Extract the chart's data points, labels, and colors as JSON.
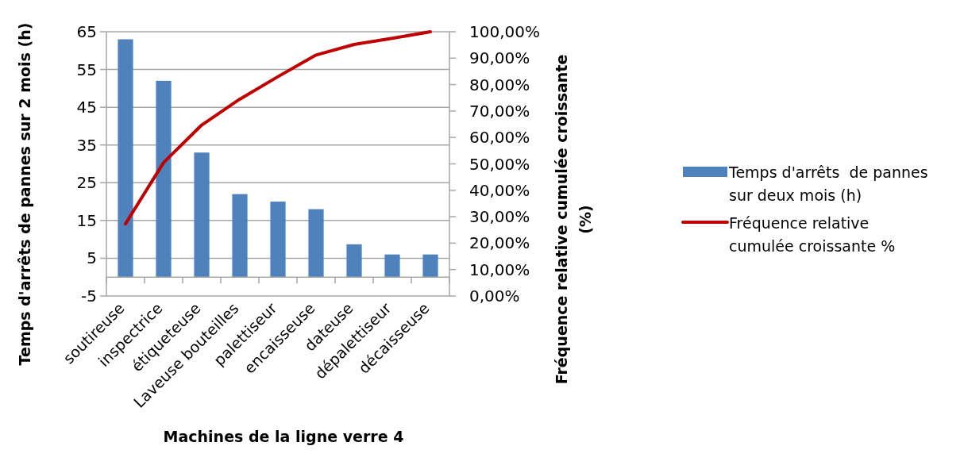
{
  "chart_data": {
    "type": "bar",
    "xlabel": "Machines de la ligne verre 4",
    "ylabel": "Temps d'arrêts de pannes sur 2 mois (h)",
    "y2label": "Fréquence relative cumulée croissante (%)",
    "categories": [
      "soutireuse",
      "inspectrice",
      "étiqueteuse",
      "Laveuse bouteilles",
      "palettiseur",
      "encaisseuse",
      "dateuse",
      "dépalettiseur",
      "décaisseuse"
    ],
    "series": [
      {
        "name": "Temps d'arrêts  de pannes sur deux mois (h)",
        "type": "bar",
        "color": "#4f81bd",
        "values": [
          63,
          52,
          33,
          22,
          20,
          18,
          8.7,
          6,
          6
        ]
      },
      {
        "name": "Fréquence relative cumulée croissante %",
        "type": "line",
        "axis": "y2",
        "color": "#c00000",
        "values": [
          27.3,
          50.5,
          64.7,
          74.5,
          83,
          91.2,
          95.2,
          97.5,
          100
        ]
      }
    ],
    "ylim": [
      -5,
      65
    ],
    "yticks": [
      -5,
      5,
      15,
      25,
      35,
      45,
      55,
      65
    ],
    "y2lim": [
      0,
      100
    ],
    "y2ticks": [
      {
        "value": 0,
        "label": "0,00%"
      },
      {
        "value": 10,
        "label": "10,00%"
      },
      {
        "value": 20,
        "label": "20,00%"
      },
      {
        "value": 30,
        "label": "30,00%"
      },
      {
        "value": 40,
        "label": "40,00%"
      },
      {
        "value": 50,
        "label": "50,00%"
      },
      {
        "value": 60,
        "label": "60,00%"
      },
      {
        "value": 70,
        "label": "70,00%"
      },
      {
        "value": 80,
        "label": "80,00%"
      },
      {
        "value": 90,
        "label": "90,00%"
      },
      {
        "value": 100,
        "label": "100,00%"
      }
    ],
    "grid": "y",
    "legend": "right",
    "marker": "none",
    "line_style": "solid"
  }
}
